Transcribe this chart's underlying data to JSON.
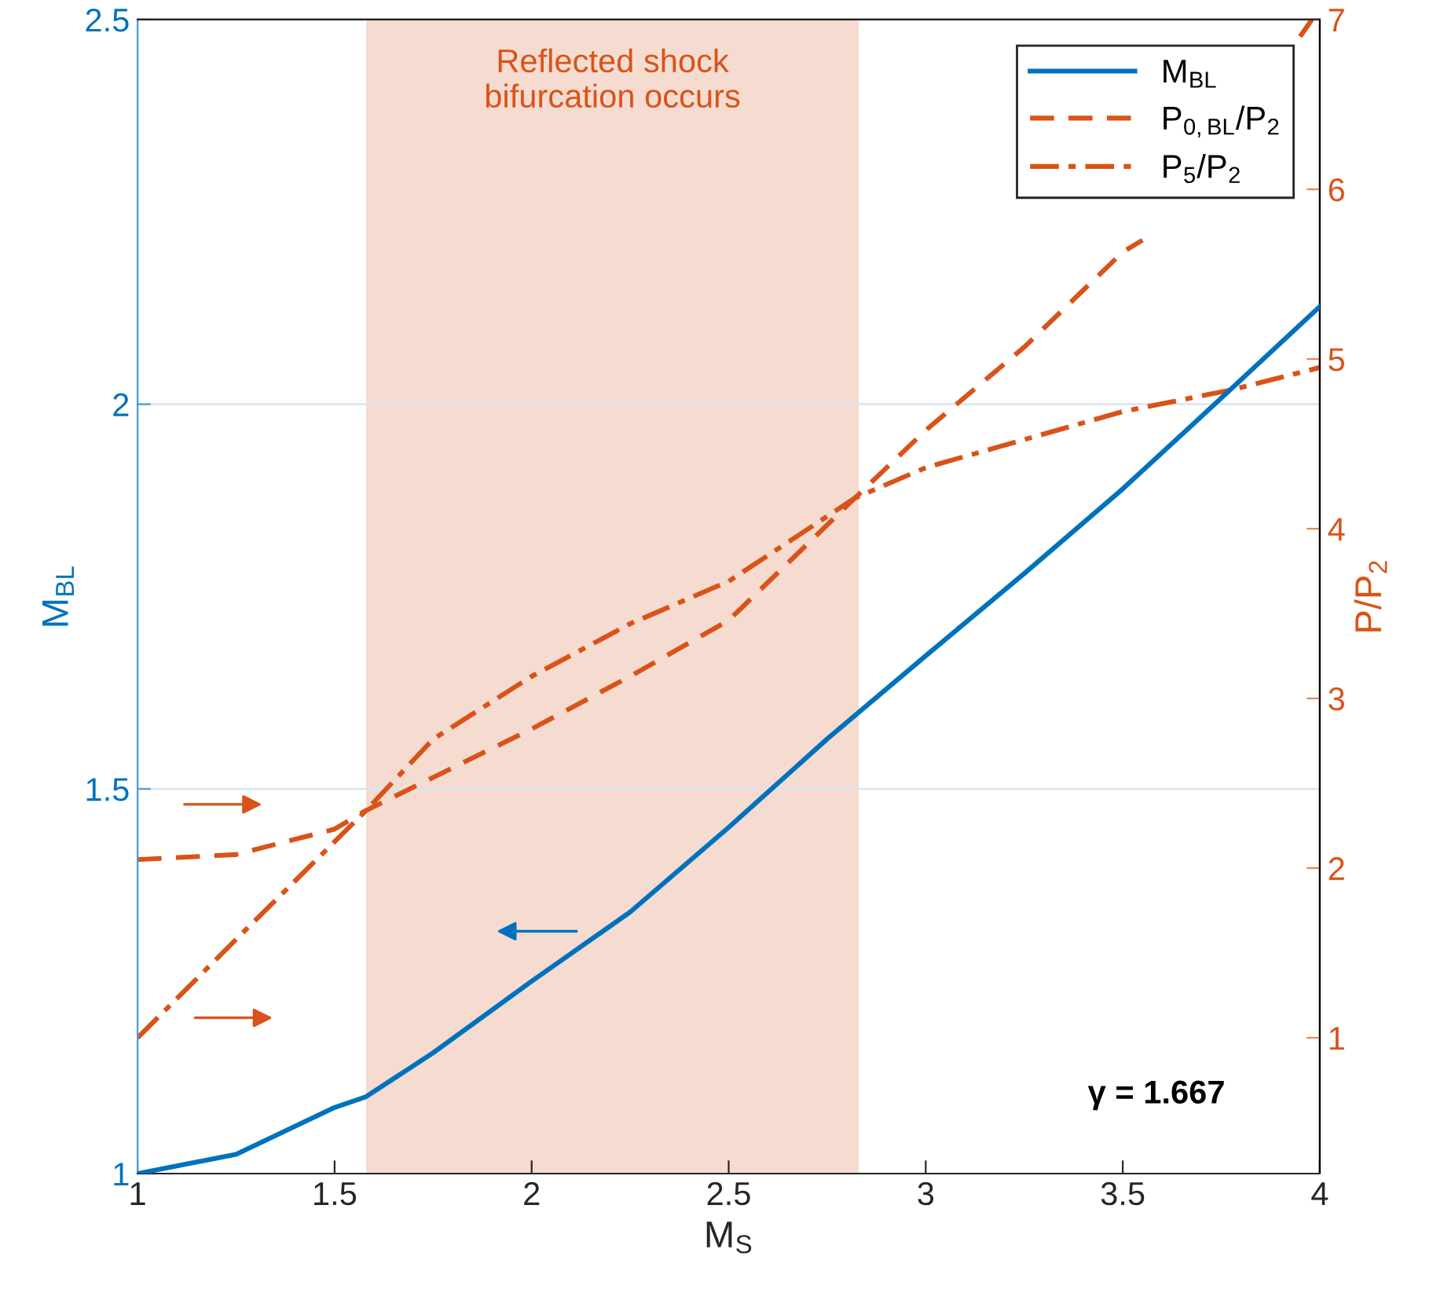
{
  "chart_data": {
    "type": "line",
    "xlabel": "M$_{S}$",
    "ylabel": "M$_{BL}$",
    "y2label": "P/P$_{2}$",
    "xlim": [
      1,
      4
    ],
    "xticks": [
      1,
      1.5,
      2,
      2.5,
      3,
      3.5,
      4
    ],
    "ylim": [
      1,
      2.5
    ],
    "yticks": [
      1,
      1.5,
      2,
      2.5
    ],
    "y2lim": [
      0.2,
      7
    ],
    "y2ticks": [
      1,
      2,
      3,
      4,
      5,
      6,
      7
    ],
    "grid": true,
    "legend": "top right",
    "series": [
      {
        "name": "M$_{BL}$",
        "color": "#0072bd",
        "line_style": "solid",
        "x": [
          1,
          1.25,
          1.5,
          1.58,
          1.75,
          2,
          2.25,
          2.5,
          2.75,
          3,
          3.25,
          3.5,
          3.75,
          4
        ],
        "values": [
          1.0,
          1.025,
          1.086,
          1.1,
          1.157,
          1.25,
          1.34,
          1.45,
          1.565,
          1.673,
          1.78,
          1.89,
          2.008,
          2.127
        ]
      },
      {
        "name": "P$_{0,BL}$/P$_{2}$",
        "color": "#d95319",
        "line_style": "dashed",
        "axis": "y2",
        "x": [
          1,
          1.25,
          1.5,
          1.58,
          2,
          2.25,
          2.5,
          2.82,
          3,
          3.25,
          3.5,
          3.55,
          3.75,
          3.95,
          3.98
        ],
        "values": [
          2.05,
          2.08,
          2.23,
          2.34,
          2.82,
          3.13,
          3.46,
          4.18,
          4.58,
          5.07,
          5.63,
          5.7,
          null,
          6.9,
          7.0
        ]
      },
      {
        "name": "P$_{5}$/P$_{2}$",
        "color": "#d95319",
        "line_style": "dashdot",
        "axis": "y2",
        "x": [
          1,
          1.25,
          1.58,
          1.75,
          2,
          2.25,
          2.5,
          2.82,
          3,
          3.5,
          3.78,
          4
        ],
        "values": [
          1.0,
          1.58,
          2.34,
          2.76,
          3.13,
          3.44,
          3.69,
          4.18,
          4.36,
          4.69,
          4.82,
          4.95
        ]
      }
    ],
    "bands": [
      {
        "axis": "x",
        "from": 1.58,
        "to": 2.83,
        "label": "Reflected shock\nbifurcation occurs",
        "color": "#f5dbd0"
      }
    ],
    "annotations": [
      "γ = 1.667"
    ]
  }
}
